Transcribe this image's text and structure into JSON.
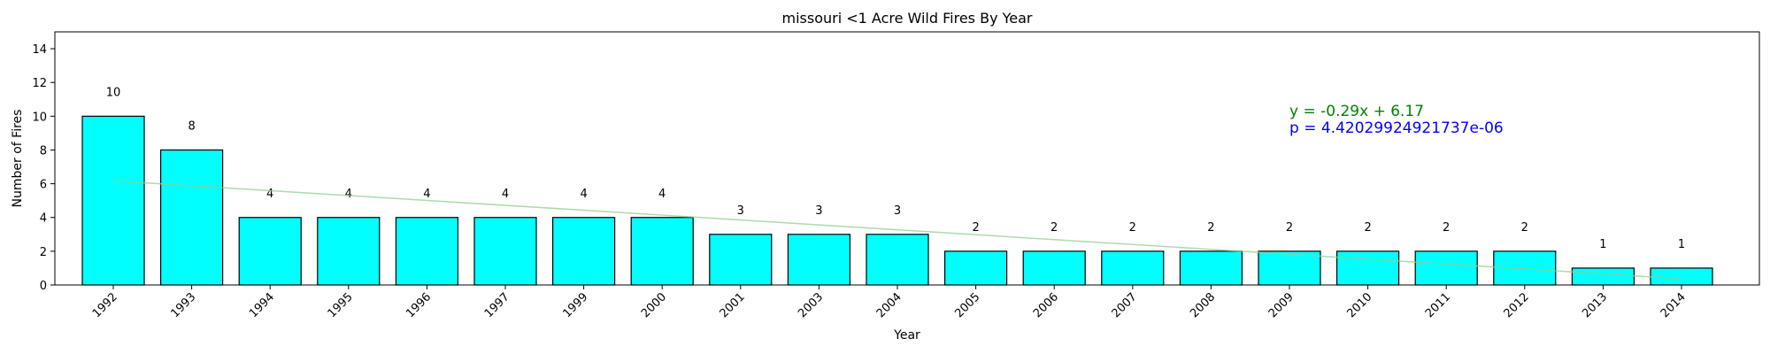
{
  "chart_data": {
    "type": "bar",
    "title": "missouri <1 Acre Wild Fires By Year",
    "xlabel": "Year",
    "ylabel": "Number of Fires",
    "categories": [
      "1992",
      "1993",
      "1994",
      "1995",
      "1996",
      "1997",
      "1999",
      "2000",
      "2001",
      "2003",
      "2004",
      "2005",
      "2006",
      "2007",
      "2008",
      "2009",
      "2010",
      "2011",
      "2012",
      "2013",
      "2014"
    ],
    "values": [
      10,
      8,
      4,
      4,
      4,
      4,
      4,
      4,
      3,
      3,
      3,
      2,
      2,
      2,
      2,
      2,
      2,
      2,
      2,
      1,
      1
    ],
    "ylim": [
      0,
      15
    ],
    "yticks": [
      0,
      2,
      4,
      6,
      8,
      10,
      12,
      14
    ],
    "grid": false,
    "bar_color": "#00ffff",
    "bar_edge_color": "#000000",
    "trendline": {
      "slope": -0.29,
      "intercept": 6.17,
      "color": "#90d090",
      "equation_label": "y = -0.29x + 6.17",
      "equation_color": "#008000",
      "p_label": "p = 4.42029924921737e-06",
      "p_color": "#0000ff"
    }
  }
}
